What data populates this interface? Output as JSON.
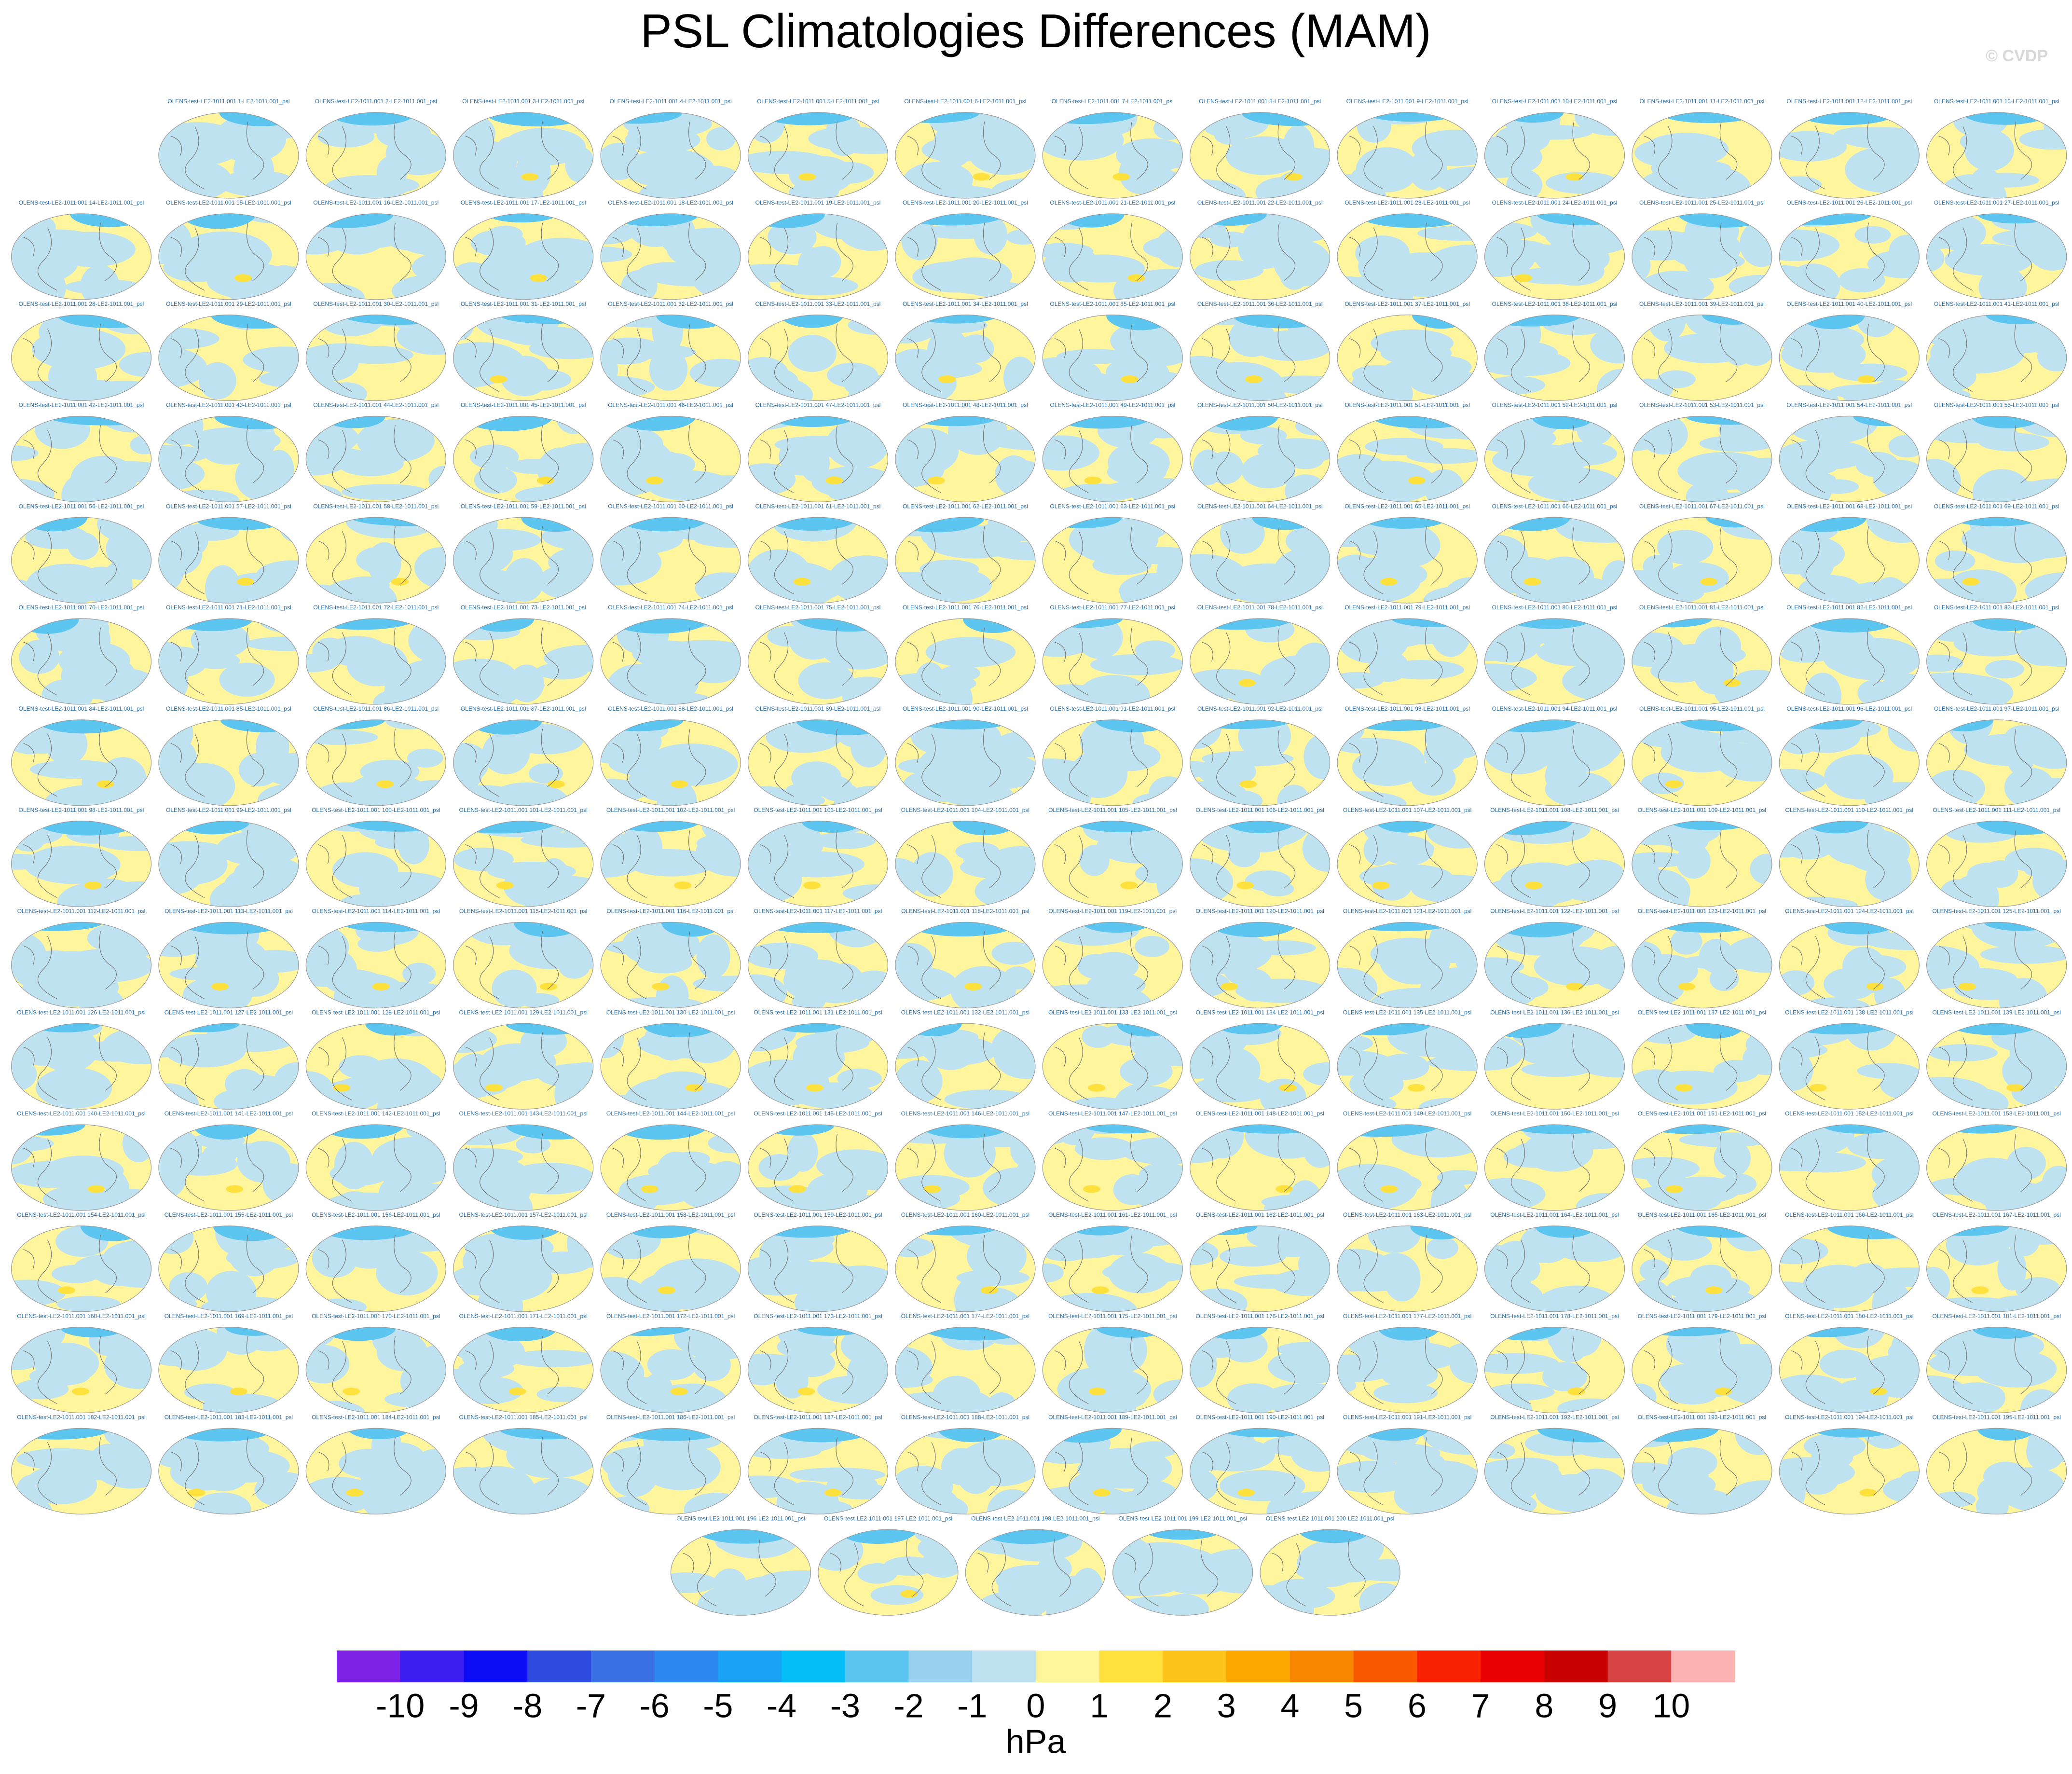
{
  "title": "PSL Climatologies Differences (MAM)",
  "watermark": "© CVDP",
  "panels": [
    "OLENS-test-LE2-1011.001 1-LE2-1011.001_psl",
    "OLENS-test-LE2-1011.001 2-LE2-1011.001_psl",
    "OLENS-test-LE2-1011.001 3-LE2-1011.001_psl",
    "OLENS-test-LE2-1011.001 4-LE2-1011.001_psl",
    "OLENS-test-LE2-1011.001 5-LE2-1011.001_psl",
    "OLENS-test-LE2-1011.001 6-LE2-1011.001_psl",
    "OLENS-test-LE2-1011.001 7-LE2-1011.001_psl",
    "OLENS-test-LE2-1011.001 8-LE2-1011.001_psl",
    "OLENS-test-LE2-1011.001 9-LE2-1011.001_psl",
    "OLENS-test-LE2-1011.001 10-LE2-1011.001_psl",
    "OLENS-test-LE2-1011.001 11-LE2-1011.001_psl",
    "OLENS-test-LE2-1011.001 12-LE2-1011.001_psl",
    "OLENS-test-LE2-1011.001 13-LE2-1011.001_psl",
    "OLENS-test-LE2-1011.001 14-LE2-1011.001_psl",
    "OLENS-test-LE2-1011.001 15-LE2-1011.001_psl",
    "OLENS-test-LE2-1011.001 16-LE2-1011.001_psl",
    "OLENS-test-LE2-1011.001 17-LE2-1011.001_psl",
    "OLENS-test-LE2-1011.001 18-LE2-1011.001_psl",
    "OLENS-test-LE2-1011.001 19-LE2-1011.001_psl",
    "OLENS-test-LE2-1011.001 20-LE2-1011.001_psl",
    "OLENS-test-LE2-1011.001 21-LE2-1011.001_psl",
    "OLENS-test-LE2-1011.001 22-LE2-1011.001_psl",
    "OLENS-test-LE2-1011.001 23-LE2-1011.001_psl",
    "OLENS-test-LE2-1011.001 24-LE2-1011.001_psl",
    "OLENS-test-LE2-1011.001 25-LE2-1011.001_psl",
    "OLENS-test-LE2-1011.001 26-LE2-1011.001_psl",
    "OLENS-test-LE2-1011.001 27-LE2-1011.001_psl",
    "OLENS-test-LE2-1011.001 28-LE2-1011.001_psl",
    "OLENS-test-LE2-1011.001 29-LE2-1011.001_psl",
    "OLENS-test-LE2-1011.001 30-LE2-1011.001_psl",
    "OLENS-test-LE2-1011.001 31-LE2-1011.001_psl",
    "OLENS-test-LE2-1011.001 32-LE2-1011.001_psl",
    "OLENS-test-LE2-1011.001 33-LE2-1011.001_psl",
    "OLENS-test-LE2-1011.001 34-LE2-1011.001_psl",
    "OLENS-test-LE2-1011.001 35-LE2-1011.001_psl",
    "OLENS-test-LE2-1011.001 36-LE2-1011.001_psl",
    "OLENS-test-LE2-1011.001 37-LE2-1011.001_psl",
    "OLENS-test-LE2-1011.001 38-LE2-1011.001_psl",
    "OLENS-test-LE2-1011.001 39-LE2-1011.001_psl",
    "OLENS-test-LE2-1011.001 40-LE2-1011.001_psl",
    "OLENS-test-LE2-1011.001 41-LE2-1011.001_psl",
    "OLENS-test-LE2-1011.001 42-LE2-1011.001_psl",
    "OLENS-test-LE2-1011.001 43-LE2-1011.001_psl",
    "OLENS-test-LE2-1011.001 44-LE2-1011.001_psl",
    "OLENS-test-LE2-1011.001 45-LE2-1011.001_psl",
    "OLENS-test-LE2-1011.001 46-LE2-1011.001_psl",
    "OLENS-test-LE2-1011.001 47-LE2-1011.001_psl",
    "OLENS-test-LE2-1011.001 48-LE2-1011.001_psl",
    "OLENS-test-LE2-1011.001 49-LE2-1011.001_psl",
    "OLENS-test-LE2-1011.001 50-LE2-1011.001_psl",
    "OLENS-test-LE2-1011.001 51-LE2-1011.001_psl",
    "OLENS-test-LE2-1011.001 52-LE2-1011.001_psl",
    "OLENS-test-LE2-1011.001 53-LE2-1011.001_psl",
    "OLENS-test-LE2-1011.001 54-LE2-1011.001_psl",
    "OLENS-test-LE2-1011.001 55-LE2-1011.001_psl",
    "OLENS-test-LE2-1011.001 56-LE2-1011.001_psl",
    "OLENS-test-LE2-1011.001 57-LE2-1011.001_psl",
    "OLENS-test-LE2-1011.001 58-LE2-1011.001_psl",
    "OLENS-test-LE2-1011.001 59-LE2-1011.001_psl",
    "OLENS-test-LE2-1011.001 60-LE2-1011.001_psl",
    "OLENS-test-LE2-1011.001 61-LE2-1011.001_psl",
    "OLENS-test-LE2-1011.001 62-LE2-1011.001_psl",
    "OLENS-test-LE2-1011.001 63-LE2-1011.001_psl",
    "OLENS-test-LE2-1011.001 64-LE2-1011.001_psl",
    "OLENS-test-LE2-1011.001 65-LE2-1011.001_psl",
    "OLENS-test-LE2-1011.001 66-LE2-1011.001_psl",
    "OLENS-test-LE2-1011.001 67-LE2-1011.001_psl",
    "OLENS-test-LE2-1011.001 68-LE2-1011.001_psl",
    "OLENS-test-LE2-1011.001 69-LE2-1011.001_psl",
    "OLENS-test-LE2-1011.001 70-LE2-1011.001_psl",
    "OLENS-test-LE2-1011.001 71-LE2-1011.001_psl",
    "OLENS-test-LE2-1011.001 72-LE2-1011.001_psl",
    "OLENS-test-LE2-1011.001 73-LE2-1011.001_psl",
    "OLENS-test-LE2-1011.001 74-LE2-1011.001_psl",
    "OLENS-test-LE2-1011.001 75-LE2-1011.001_psl",
    "OLENS-test-LE2-1011.001 76-LE2-1011.001_psl",
    "OLENS-test-LE2-1011.001 77-LE2-1011.001_psl",
    "OLENS-test-LE2-1011.001 78-LE2-1011.001_psl",
    "OLENS-test-LE2-1011.001 79-LE2-1011.001_psl",
    "OLENS-test-LE2-1011.001 80-LE2-1011.001_psl",
    "OLENS-test-LE2-1011.001 81-LE2-1011.001_psl",
    "OLENS-test-LE2-1011.001 82-LE2-1011.001_psl",
    "OLENS-test-LE2-1011.001 83-LE2-1011.001_psl",
    "OLENS-test-LE2-1011.001 84-LE2-1011.001_psl",
    "OLENS-test-LE2-1011.001 85-LE2-1011.001_psl",
    "OLENS-test-LE2-1011.001 86-LE2-1011.001_psl",
    "OLENS-test-LE2-1011.001 87-LE2-1011.001_psl",
    "OLENS-test-LE2-1011.001 88-LE2-1011.001_psl",
    "OLENS-test-LE2-1011.001 89-LE2-1011.001_psl",
    "OLENS-test-LE2-1011.001 90-LE2-1011.001_psl",
    "OLENS-test-LE2-1011.001 91-LE2-1011.001_psl",
    "OLENS-test-LE2-1011.001 92-LE2-1011.001_psl",
    "OLENS-test-LE2-1011.001 93-LE2-1011.001_psl",
    "OLENS-test-LE2-1011.001 94-LE2-1011.001_psl",
    "OLENS-test-LE2-1011.001 95-LE2-1011.001_psl",
    "OLENS-test-LE2-1011.001 96-LE2-1011.001_psl",
    "OLENS-test-LE2-1011.001 97-LE2-1011.001_psl",
    "OLENS-test-LE2-1011.001 98-LE2-1011.001_psl",
    "OLENS-test-LE2-1011.001 99-LE2-1011.001_psl",
    "OLENS-test-LE2-1011.001 100-LE2-1011.001_psl",
    "OLENS-test-LE2-1011.001 101-LE2-1011.001_psl",
    "OLENS-test-LE2-1011.001 102-LE2-1011.001_psl",
    "OLENS-test-LE2-1011.001 103-LE2-1011.001_psl",
    "OLENS-test-LE2-1011.001 104-LE2-1011.001_psl",
    "OLENS-test-LE2-1011.001 105-LE2-1011.001_psl",
    "OLENS-test-LE2-1011.001 106-LE2-1011.001_psl",
    "OLENS-test-LE2-1011.001 107-LE2-1011.001_psl",
    "OLENS-test-LE2-1011.001 108-LE2-1011.001_psl",
    "OLENS-test-LE2-1011.001 109-LE2-1011.001_psl",
    "OLENS-test-LE2-1011.001 110-LE2-1011.001_psl",
    "OLENS-test-LE2-1011.001 111-LE2-1011.001_psl",
    "OLENS-test-LE2-1011.001 112-LE2-1011.001_psl",
    "OLENS-test-LE2-1011.001 113-LE2-1011.001_psl",
    "OLENS-test-LE2-1011.001 114-LE2-1011.001_psl",
    "OLENS-test-LE2-1011.001 115-LE2-1011.001_psl",
    "OLENS-test-LE2-1011.001 116-LE2-1011.001_psl",
    "OLENS-test-LE2-1011.001 117-LE2-1011.001_psl",
    "OLENS-test-LE2-1011.001 118-LE2-1011.001_psl",
    "OLENS-test-LE2-1011.001 119-LE2-1011.001_psl",
    "OLENS-test-LE2-1011.001 120-LE2-1011.001_psl",
    "OLENS-test-LE2-1011.001 121-LE2-1011.001_psl",
    "OLENS-test-LE2-1011.001 122-LE2-1011.001_psl",
    "OLENS-test-LE2-1011.001 123-LE2-1011.001_psl",
    "OLENS-test-LE2-1011.001 124-LE2-1011.001_psl",
    "OLENS-test-LE2-1011.001 125-LE2-1011.001_psl",
    "OLENS-test-LE2-1011.001 126-LE2-1011.001_psl",
    "OLENS-test-LE2-1011.001 127-LE2-1011.001_psl",
    "OLENS-test-LE2-1011.001 128-LE2-1011.001_psl",
    "OLENS-test-LE2-1011.001 129-LE2-1011.001_psl",
    "OLENS-test-LE2-1011.001 130-LE2-1011.001_psl",
    "OLENS-test-LE2-1011.001 131-LE2-1011.001_psl",
    "OLENS-test-LE2-1011.001 132-LE2-1011.001_psl",
    "OLENS-test-LE2-1011.001 133-LE2-1011.001_psl",
    "OLENS-test-LE2-1011.001 134-LE2-1011.001_psl",
    "OLENS-test-LE2-1011.001 135-LE2-1011.001_psl",
    "OLENS-test-LE2-1011.001 136-LE2-1011.001_psl",
    "OLENS-test-LE2-1011.001 137-LE2-1011.001_psl",
    "OLENS-test-LE2-1011.001 138-LE2-1011.001_psl",
    "OLENS-test-LE2-1011.001 139-LE2-1011.001_psl",
    "OLENS-test-LE2-1011.001 140-LE2-1011.001_psl",
    "OLENS-test-LE2-1011.001 141-LE2-1011.001_psl",
    "OLENS-test-LE2-1011.001 142-LE2-1011.001_psl",
    "OLENS-test-LE2-1011.001 143-LE2-1011.001_psl",
    "OLENS-test-LE2-1011.001 144-LE2-1011.001_psl",
    "OLENS-test-LE2-1011.001 145-LE2-1011.001_psl",
    "OLENS-test-LE2-1011.001 146-LE2-1011.001_psl",
    "OLENS-test-LE2-1011.001 147-LE2-1011.001_psl",
    "OLENS-test-LE2-1011.001 148-LE2-1011.001_psl",
    "OLENS-test-LE2-1011.001 149-LE2-1011.001_psl",
    "OLENS-test-LE2-1011.001 150-LE2-1011.001_psl",
    "OLENS-test-LE2-1011.001 151-LE2-1011.001_psl",
    "OLENS-test-LE2-1011.001 152-LE2-1011.001_psl",
    "OLENS-test-LE2-1011.001 153-LE2-1011.001_psl",
    "OLENS-test-LE2-1011.001 154-LE2-1011.001_psl",
    "OLENS-test-LE2-1011.001 155-LE2-1011.001_psl",
    "OLENS-test-LE2-1011.001 156-LE2-1011.001_psl",
    "OLENS-test-LE2-1011.001 157-LE2-1011.001_psl",
    "OLENS-test-LE2-1011.001 158-LE2-1011.001_psl",
    "OLENS-test-LE2-1011.001 159-LE2-1011.001_psl",
    "OLENS-test-LE2-1011.001 160-LE2-1011.001_psl",
    "OLENS-test-LE2-1011.001 161-LE2-1011.001_psl",
    "OLENS-test-LE2-1011.001 162-LE2-1011.001_psl",
    "OLENS-test-LE2-1011.001 163-LE2-1011.001_psl",
    "OLENS-test-LE2-1011.001 164-LE2-1011.001_psl",
    "OLENS-test-LE2-1011.001 165-LE2-1011.001_psl",
    "OLENS-test-LE2-1011.001 166-LE2-1011.001_psl",
    "OLENS-test-LE2-1011.001 167-LE2-1011.001_psl",
    "OLENS-test-LE2-1011.001 168-LE2-1011.001_psl",
    "OLENS-test-LE2-1011.001 169-LE2-1011.001_psl",
    "OLENS-test-LE2-1011.001 170-LE2-1011.001_psl",
    "OLENS-test-LE2-1011.001 171-LE2-1011.001_psl",
    "OLENS-test-LE2-1011.001 172-LE2-1011.001_psl",
    "OLENS-test-LE2-1011.001 173-LE2-1011.001_psl",
    "OLENS-test-LE2-1011.001 174-LE2-1011.001_psl",
    "OLENS-test-LE2-1011.001 175-LE2-1011.001_psl",
    "OLENS-test-LE2-1011.001 176-LE2-1011.001_psl",
    "OLENS-test-LE2-1011.001 177-LE2-1011.001_psl",
    "OLENS-test-LE2-1011.001 178-LE2-1011.001_psl",
    "OLENS-test-LE2-1011.001 179-LE2-1011.001_psl",
    "OLENS-test-LE2-1011.001 180-LE2-1011.001_psl",
    "OLENS-test-LE2-1011.001 181-LE2-1011.001_psl",
    "OLENS-test-LE2-1011.001 182-LE2-1011.001_psl",
    "OLENS-test-LE2-1011.001 183-LE2-1011.001_psl",
    "OLENS-test-LE2-1011.001 184-LE2-1011.001_psl",
    "OLENS-test-LE2-1011.001 185-LE2-1011.001_psl",
    "OLENS-test-LE2-1011.001 186-LE2-1011.001_psl",
    "OLENS-test-LE2-1011.001 187-LE2-1011.001_psl",
    "OLENS-test-LE2-1011.001 188-LE2-1011.001_psl",
    "OLENS-test-LE2-1011.001 189-LE2-1011.001_psl",
    "OLENS-test-LE2-1011.001 190-LE2-1011.001_psl",
    "OLENS-test-LE2-1011.001 191-LE2-1011.001_psl",
    "OLENS-test-LE2-1011.001 192-LE2-1011.001_psl",
    "OLENS-test-LE2-1011.001 193-LE2-1011.001_psl",
    "OLENS-test-LE2-1011.001 194-LE2-1011.001_psl",
    "OLENS-test-LE2-1011.001 195-LE2-1011.001_psl",
    "OLENS-test-LE2-1011.001 196-LE2-1011.001_psl",
    "OLENS-test-LE2-1011.001 197-LE2-1011.001_psl",
    "OLENS-test-LE2-1011.001 198-LE2-1011.001_psl",
    "OLENS-test-LE2-1011.001 199-LE2-1011.001_psl",
    "OLENS-test-LE2-1011.001 200-LE2-1011.001_psl"
  ],
  "colorbar": {
    "levels": [
      -10,
      -9,
      -8,
      -7,
      -6,
      -5,
      -4,
      -3,
      -2,
      -1,
      0,
      1,
      2,
      3,
      4,
      5,
      6,
      7,
      8,
      9,
      10
    ],
    "colors": [
      "#7f22e8",
      "#3c1ff0",
      "#0b0cf4",
      "#2e4be0",
      "#3a6fe2",
      "#2c87f0",
      "#1aa2f6",
      "#05bef5",
      "#5cc5f0",
      "#98cfee",
      "#bfe2f1",
      "#fff59b",
      "#ffe13d",
      "#fcc31b",
      "#fba700",
      "#fa8700",
      "#f95a00",
      "#f82200",
      "#e60000",
      "#c80000",
      "#d84343",
      "#fab2b2"
    ],
    "unit": "hPa"
  }
}
